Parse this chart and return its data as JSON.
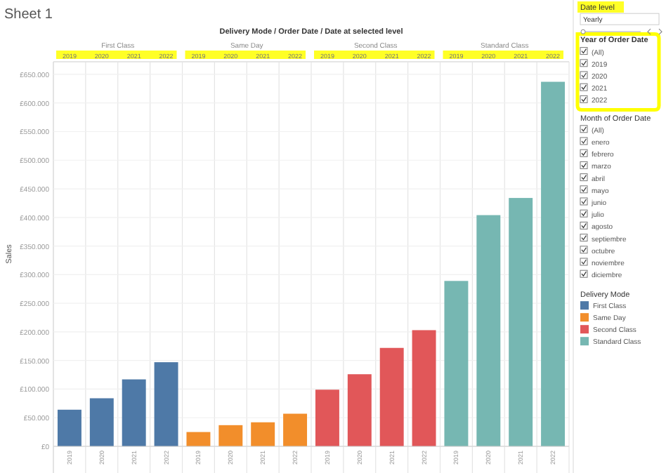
{
  "chart_data": {
    "type": "bar",
    "title": "Sheet 1",
    "xlabel": "Delivery Mode / Order Date / Date at selected level",
    "ylabel": "Sales",
    "legend_title": "Delivery Mode",
    "legend": "right",
    "grid": "y",
    "categories": [
      "2019",
      "2020",
      "2021",
      "2022",
      "2019",
      "2020",
      "2021",
      "2022",
      "2019",
      "2020",
      "2021",
      "2022",
      "2019",
      "2020",
      "2021",
      "2022"
    ],
    "series": [
      {
        "name": "First Class",
        "color": "#4e79a7",
        "values": [
          64000,
          84000,
          117000,
          147000,
          null,
          null,
          null,
          null,
          null,
          null,
          null,
          null,
          null,
          null,
          null,
          null
        ]
      },
      {
        "name": "Same Day",
        "color": "#f28e2b",
        "values": [
          null,
          null,
          null,
          null,
          25000,
          37000,
          42000,
          57000,
          null,
          null,
          null,
          null,
          null,
          null,
          null,
          null
        ]
      },
      {
        "name": "Second Class",
        "color": "#e15759",
        "values": [
          null,
          null,
          null,
          null,
          null,
          null,
          null,
          null,
          99000,
          126000,
          172000,
          203000,
          null,
          null,
          null,
          null
        ]
      },
      {
        "name": "Standard Class",
        "color": "#76b7b2",
        "values": [
          null,
          null,
          null,
          null,
          null,
          null,
          null,
          null,
          null,
          null,
          null,
          null,
          289000,
          404000,
          434000,
          637000
        ]
      }
    ],
    "ylim": [
      0,
      672000
    ],
    "yticks": [
      {
        "value": 0,
        "label": "£0"
      },
      {
        "value": 50000,
        "label": "£50.000"
      },
      {
        "value": 100000,
        "label": "£100.000"
      },
      {
        "value": 150000,
        "label": "£150.000"
      },
      {
        "value": 200000,
        "label": "£200.000"
      },
      {
        "value": 250000,
        "label": "£250.000"
      },
      {
        "value": 300000,
        "label": "£300.000"
      },
      {
        "value": 350000,
        "label": "£350.000"
      },
      {
        "value": 400000,
        "label": "£400.000"
      },
      {
        "value": 450000,
        "label": "£450.000"
      },
      {
        "value": 500000,
        "label": "£500.000"
      },
      {
        "value": 550000,
        "label": "£550.000"
      },
      {
        "value": 600000,
        "label": "£600.000"
      },
      {
        "value": 650000,
        "label": "£650.000"
      }
    ],
    "annotations": [
      "Date level",
      "Yearly",
      "Year of Order Date",
      "(All)",
      "2019",
      "2020",
      "2021",
      "2022",
      "Month of Order Date",
      "(All)",
      "enero",
      "febrero",
      "marzo",
      "abril",
      "mayo",
      "junio",
      "julio",
      "agosto",
      "septiembre",
      "octubre",
      "noviembre",
      "diciembre"
    ]
  }
}
